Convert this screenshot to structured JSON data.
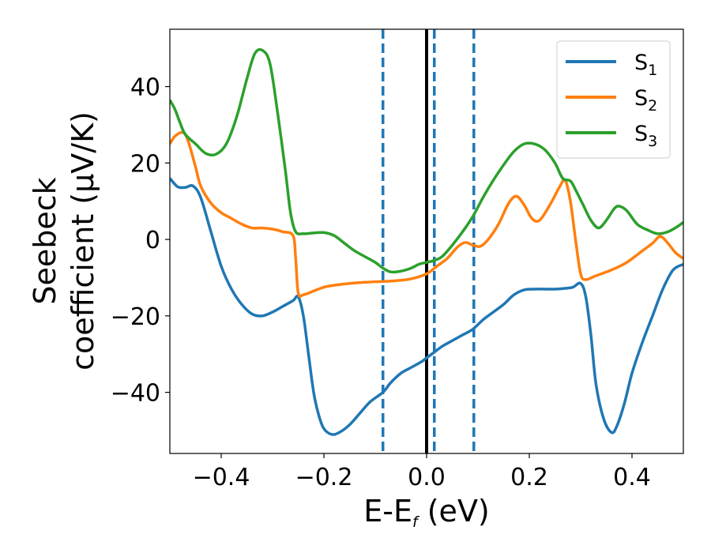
{
  "chart_data": {
    "type": "line",
    "xlabel": {
      "base": "E-E",
      "sub": "f",
      "tail": " (eV)"
    },
    "ylabel": {
      "line1": "Seebeck",
      "line2": "coefficient  (μV/K)"
    },
    "xlim": [
      -0.5,
      0.5
    ],
    "ylim": [
      -56,
      55
    ],
    "xticks": [
      {
        "value": -0.4,
        "label": "−0.4"
      },
      {
        "value": -0.2,
        "label": "−0.2"
      },
      {
        "value": 0.0,
        "label": "0.0"
      },
      {
        "value": 0.2,
        "label": "0.2"
      },
      {
        "value": 0.4,
        "label": "0.4"
      }
    ],
    "yticks": [
      {
        "value": -40,
        "label": "−40"
      },
      {
        "value": -20,
        "label": "−20"
      },
      {
        "value": 0,
        "label": "0"
      },
      {
        "value": 20,
        "label": "20"
      },
      {
        "value": 40,
        "label": "40"
      }
    ],
    "legend_placement": "top-right",
    "grid": false,
    "series": [
      {
        "name_base": "S",
        "name_sub": "1",
        "color": "#1f77b4",
        "points": [
          [
            -0.5,
            16
          ],
          [
            -0.485,
            13.8
          ],
          [
            -0.47,
            13.6
          ],
          [
            -0.455,
            14
          ],
          [
            -0.44,
            11
          ],
          [
            -0.42,
            2
          ],
          [
            -0.4,
            -7
          ],
          [
            -0.38,
            -13
          ],
          [
            -0.36,
            -17
          ],
          [
            -0.34,
            -19.5
          ],
          [
            -0.32,
            -20
          ],
          [
            -0.3,
            -19
          ],
          [
            -0.28,
            -17.5
          ],
          [
            -0.26,
            -16
          ],
          [
            -0.25,
            -15
          ],
          [
            -0.24,
            -20
          ],
          [
            -0.23,
            -30
          ],
          [
            -0.22,
            -40
          ],
          [
            -0.21,
            -46
          ],
          [
            -0.2,
            -49.5
          ],
          [
            -0.185,
            -51
          ],
          [
            -0.17,
            -50.5
          ],
          [
            -0.15,
            -48.5
          ],
          [
            -0.13,
            -45.5
          ],
          [
            -0.11,
            -42.5
          ],
          [
            -0.085,
            -40
          ],
          [
            -0.07,
            -37.5
          ],
          [
            -0.05,
            -35
          ],
          [
            -0.03,
            -33.5
          ],
          [
            -0.01,
            -32
          ],
          [
            0.0,
            -31
          ],
          [
            0.015,
            -29.5
          ],
          [
            0.03,
            -28
          ],
          [
            0.05,
            -26.5
          ],
          [
            0.07,
            -25
          ],
          [
            0.09,
            -23.5
          ],
          [
            0.11,
            -21
          ],
          [
            0.13,
            -19
          ],
          [
            0.15,
            -17
          ],
          [
            0.17,
            -14.5
          ],
          [
            0.19,
            -13.2
          ],
          [
            0.21,
            -13
          ],
          [
            0.23,
            -13
          ],
          [
            0.25,
            -13
          ],
          [
            0.27,
            -12.8
          ],
          [
            0.285,
            -12.5
          ],
          [
            0.3,
            -11.5
          ],
          [
            0.31,
            -15
          ],
          [
            0.32,
            -25
          ],
          [
            0.33,
            -38
          ],
          [
            0.345,
            -47
          ],
          [
            0.36,
            -50.5
          ],
          [
            0.37,
            -49
          ],
          [
            0.385,
            -43
          ],
          [
            0.4,
            -35
          ],
          [
            0.42,
            -27
          ],
          [
            0.44,
            -20
          ],
          [
            0.46,
            -13
          ],
          [
            0.48,
            -8
          ],
          [
            0.5,
            -6.5
          ]
        ]
      },
      {
        "name_base": "S",
        "name_sub": "2",
        "color": "#ff7f0e",
        "points": [
          [
            -0.5,
            25
          ],
          [
            -0.49,
            27
          ],
          [
            -0.475,
            28
          ],
          [
            -0.465,
            26
          ],
          [
            -0.45,
            19
          ],
          [
            -0.44,
            14
          ],
          [
            -0.42,
            9.5
          ],
          [
            -0.4,
            7
          ],
          [
            -0.38,
            5.5
          ],
          [
            -0.36,
            4
          ],
          [
            -0.34,
            3
          ],
          [
            -0.32,
            3
          ],
          [
            -0.3,
            2.7
          ],
          [
            -0.28,
            2
          ],
          [
            -0.26,
            1
          ],
          [
            -0.255,
            -5
          ],
          [
            -0.25,
            -14
          ],
          [
            -0.24,
            -14.5
          ],
          [
            -0.22,
            -13.5
          ],
          [
            -0.2,
            -12.5
          ],
          [
            -0.18,
            -12
          ],
          [
            -0.15,
            -11.5
          ],
          [
            -0.12,
            -11.2
          ],
          [
            -0.085,
            -11
          ],
          [
            -0.06,
            -10.8
          ],
          [
            -0.03,
            -10.3
          ],
          [
            0.0,
            -9
          ],
          [
            0.02,
            -7
          ],
          [
            0.04,
            -5
          ],
          [
            0.06,
            -2
          ],
          [
            0.075,
            -0.8
          ],
          [
            0.09,
            -1.5
          ],
          [
            0.105,
            -1.8
          ],
          [
            0.12,
            0
          ],
          [
            0.14,
            4
          ],
          [
            0.16,
            9.5
          ],
          [
            0.175,
            11.3
          ],
          [
            0.19,
            9
          ],
          [
            0.205,
            5.5
          ],
          [
            0.22,
            5
          ],
          [
            0.24,
            9
          ],
          [
            0.26,
            14
          ],
          [
            0.27,
            15.5
          ],
          [
            0.28,
            10
          ],
          [
            0.29,
            0
          ],
          [
            0.3,
            -9
          ],
          [
            0.31,
            -10.5
          ],
          [
            0.33,
            -9.5
          ],
          [
            0.36,
            -8
          ],
          [
            0.39,
            -6
          ],
          [
            0.42,
            -3
          ],
          [
            0.44,
            -1
          ],
          [
            0.455,
            0.8
          ],
          [
            0.47,
            -1
          ],
          [
            0.485,
            -3.5
          ],
          [
            0.5,
            -5
          ]
        ]
      },
      {
        "name_base": "S",
        "name_sub": "3",
        "color": "#2ca02c",
        "points": [
          [
            -0.5,
            36.5
          ],
          [
            -0.49,
            34
          ],
          [
            -0.48,
            30.5
          ],
          [
            -0.47,
            27.5
          ],
          [
            -0.45,
            25
          ],
          [
            -0.43,
            22.5
          ],
          [
            -0.41,
            22.3
          ],
          [
            -0.39,
            25
          ],
          [
            -0.37,
            32
          ],
          [
            -0.35,
            42
          ],
          [
            -0.335,
            48.5
          ],
          [
            -0.32,
            49.5
          ],
          [
            -0.305,
            46
          ],
          [
            -0.29,
            33
          ],
          [
            -0.275,
            18
          ],
          [
            -0.265,
            7
          ],
          [
            -0.255,
            2
          ],
          [
            -0.24,
            1.5
          ],
          [
            -0.22,
            1.7
          ],
          [
            -0.2,
            1.8
          ],
          [
            -0.18,
            1
          ],
          [
            -0.16,
            -1
          ],
          [
            -0.14,
            -3
          ],
          [
            -0.12,
            -4.5
          ],
          [
            -0.1,
            -6
          ],
          [
            -0.085,
            -7.5
          ],
          [
            -0.07,
            -8.5
          ],
          [
            -0.05,
            -8.3
          ],
          [
            -0.03,
            -7.5
          ],
          [
            -0.015,
            -6.5
          ],
          [
            0.0,
            -6
          ],
          [
            0.015,
            -5.5
          ],
          [
            0.03,
            -4.5
          ],
          [
            0.05,
            -1.5
          ],
          [
            0.07,
            2
          ],
          [
            0.09,
            6
          ],
          [
            0.11,
            11
          ],
          [
            0.13,
            15.5
          ],
          [
            0.15,
            19.5
          ],
          [
            0.17,
            23
          ],
          [
            0.19,
            25
          ],
          [
            0.21,
            25
          ],
          [
            0.23,
            23.5
          ],
          [
            0.25,
            20
          ],
          [
            0.265,
            16
          ],
          [
            0.28,
            15.3
          ],
          [
            0.29,
            13
          ],
          [
            0.305,
            9
          ],
          [
            0.32,
            5
          ],
          [
            0.335,
            3
          ],
          [
            0.35,
            5
          ],
          [
            0.365,
            8
          ],
          [
            0.375,
            8.7
          ],
          [
            0.39,
            7.5
          ],
          [
            0.41,
            4
          ],
          [
            0.43,
            2.5
          ],
          [
            0.45,
            1.5
          ],
          [
            0.47,
            2
          ],
          [
            0.49,
            3.5
          ],
          [
            0.5,
            4.5
          ]
        ]
      }
    ],
    "vertical_lines": [
      {
        "x": 0.0,
        "color": "#000000",
        "style": "solid"
      },
      {
        "x": -0.085,
        "color": "#1f77b4",
        "style": "dashed"
      },
      {
        "x": 0.015,
        "color": "#1f77b4",
        "style": "dashed"
      },
      {
        "x": 0.092,
        "color": "#1f77b4",
        "style": "dashed"
      }
    ]
  }
}
